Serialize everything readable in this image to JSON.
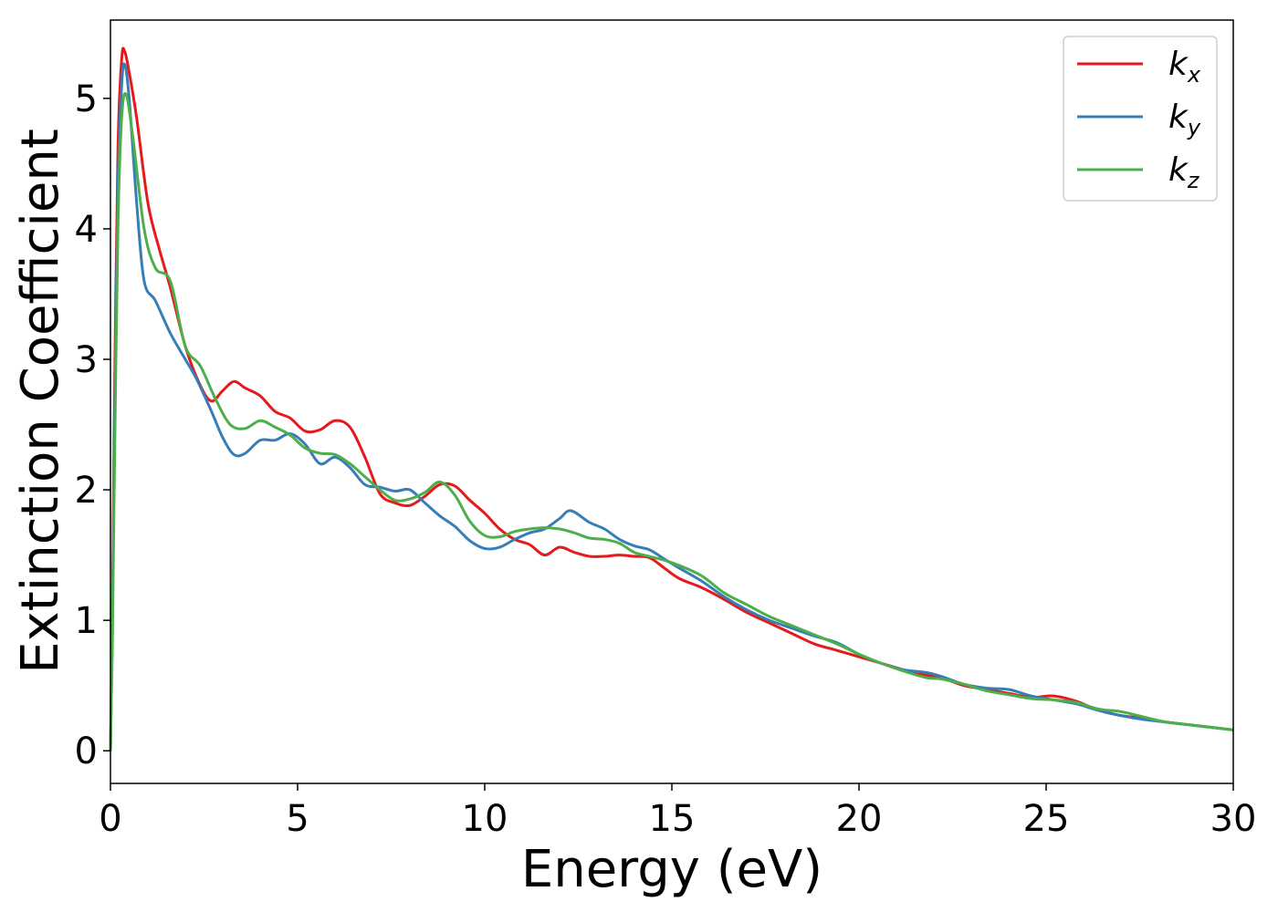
{
  "chart_data": {
    "type": "line",
    "title": "",
    "xlabel": "Energy (eV)",
    "ylabel": "Extinction Coefficient",
    "xlim": [
      0,
      30
    ],
    "ylim": [
      -0.25,
      5.6
    ],
    "xticks": [
      0,
      5,
      10,
      15,
      20,
      25,
      30
    ],
    "yticks": [
      0,
      1,
      2,
      3,
      4,
      5
    ],
    "grid": false,
    "legend_position": "top-right",
    "series": [
      {
        "name": "k",
        "sub": "x",
        "color": "#e41a1c",
        "points": [
          [
            0,
            0
          ],
          [
            0.05,
            1.0
          ],
          [
            0.1,
            2.5
          ],
          [
            0.2,
            4.6
          ],
          [
            0.3,
            5.3
          ],
          [
            0.38,
            5.36
          ],
          [
            0.5,
            5.2
          ],
          [
            0.7,
            4.85
          ],
          [
            1.0,
            4.2
          ],
          [
            1.3,
            3.85
          ],
          [
            1.6,
            3.55
          ],
          [
            2.0,
            3.1
          ],
          [
            2.4,
            2.8
          ],
          [
            2.7,
            2.68
          ],
          [
            3.0,
            2.76
          ],
          [
            3.3,
            2.83
          ],
          [
            3.6,
            2.78
          ],
          [
            4.0,
            2.72
          ],
          [
            4.4,
            2.6
          ],
          [
            4.8,
            2.55
          ],
          [
            5.2,
            2.45
          ],
          [
            5.6,
            2.46
          ],
          [
            6.0,
            2.53
          ],
          [
            6.4,
            2.48
          ],
          [
            6.8,
            2.25
          ],
          [
            7.2,
            1.97
          ],
          [
            7.6,
            1.9
          ],
          [
            8.0,
            1.88
          ],
          [
            8.4,
            1.95
          ],
          [
            8.8,
            2.04
          ],
          [
            9.2,
            2.03
          ],
          [
            9.6,
            1.92
          ],
          [
            10.0,
            1.82
          ],
          [
            10.4,
            1.7
          ],
          [
            10.8,
            1.62
          ],
          [
            11.2,
            1.58
          ],
          [
            11.6,
            1.5
          ],
          [
            12.0,
            1.56
          ],
          [
            12.4,
            1.52
          ],
          [
            12.8,
            1.49
          ],
          [
            13.2,
            1.49
          ],
          [
            13.6,
            1.5
          ],
          [
            14.0,
            1.49
          ],
          [
            14.4,
            1.48
          ],
          [
            14.8,
            1.4
          ],
          [
            15.2,
            1.32
          ],
          [
            15.8,
            1.25
          ],
          [
            16.4,
            1.16
          ],
          [
            17.0,
            1.06
          ],
          [
            17.6,
            0.98
          ],
          [
            18.2,
            0.9
          ],
          [
            18.8,
            0.82
          ],
          [
            19.4,
            0.77
          ],
          [
            20.0,
            0.72
          ],
          [
            20.6,
            0.67
          ],
          [
            21.2,
            0.62
          ],
          [
            21.8,
            0.58
          ],
          [
            22.2,
            0.56
          ],
          [
            22.8,
            0.5
          ],
          [
            23.4,
            0.47
          ],
          [
            24.0,
            0.44
          ],
          [
            24.6,
            0.41
          ],
          [
            25.2,
            0.42
          ],
          [
            25.8,
            0.38
          ],
          [
            26.4,
            0.31
          ],
          [
            27.0,
            0.27
          ],
          [
            27.6,
            0.25
          ],
          [
            28.2,
            0.22
          ],
          [
            28.8,
            0.2
          ],
          [
            29.4,
            0.18
          ],
          [
            30.0,
            0.16
          ]
        ]
      },
      {
        "name": "k",
        "sub": "y",
        "color": "#377eb8",
        "points": [
          [
            0,
            0
          ],
          [
            0.05,
            0.9
          ],
          [
            0.1,
            2.3
          ],
          [
            0.2,
            4.3
          ],
          [
            0.3,
            5.1
          ],
          [
            0.38,
            5.26
          ],
          [
            0.5,
            5.0
          ],
          [
            0.7,
            4.2
          ],
          [
            0.9,
            3.6
          ],
          [
            1.2,
            3.45
          ],
          [
            1.6,
            3.2
          ],
          [
            2.0,
            3.0
          ],
          [
            2.3,
            2.85
          ],
          [
            2.7,
            2.6
          ],
          [
            3.0,
            2.4
          ],
          [
            3.3,
            2.27
          ],
          [
            3.6,
            2.28
          ],
          [
            4.0,
            2.38
          ],
          [
            4.4,
            2.38
          ],
          [
            4.8,
            2.43
          ],
          [
            5.2,
            2.35
          ],
          [
            5.6,
            2.2
          ],
          [
            6.0,
            2.25
          ],
          [
            6.4,
            2.17
          ],
          [
            6.8,
            2.04
          ],
          [
            7.2,
            2.02
          ],
          [
            7.6,
            1.99
          ],
          [
            8.0,
            2.0
          ],
          [
            8.4,
            1.9
          ],
          [
            8.8,
            1.8
          ],
          [
            9.2,
            1.72
          ],
          [
            9.6,
            1.61
          ],
          [
            10.0,
            1.55
          ],
          [
            10.4,
            1.56
          ],
          [
            10.8,
            1.62
          ],
          [
            11.2,
            1.67
          ],
          [
            11.6,
            1.7
          ],
          [
            12.0,
            1.78
          ],
          [
            12.3,
            1.84
          ],
          [
            12.8,
            1.75
          ],
          [
            13.2,
            1.7
          ],
          [
            13.6,
            1.62
          ],
          [
            14.0,
            1.57
          ],
          [
            14.4,
            1.54
          ],
          [
            14.8,
            1.47
          ],
          [
            15.2,
            1.4
          ],
          [
            15.8,
            1.3
          ],
          [
            16.4,
            1.18
          ],
          [
            17.0,
            1.08
          ],
          [
            17.6,
            1.0
          ],
          [
            18.2,
            0.94
          ],
          [
            18.8,
            0.88
          ],
          [
            19.4,
            0.83
          ],
          [
            20.0,
            0.74
          ],
          [
            20.6,
            0.67
          ],
          [
            21.2,
            0.62
          ],
          [
            21.8,
            0.6
          ],
          [
            22.2,
            0.57
          ],
          [
            22.8,
            0.51
          ],
          [
            23.4,
            0.48
          ],
          [
            24.0,
            0.47
          ],
          [
            24.6,
            0.42
          ],
          [
            25.2,
            0.39
          ],
          [
            25.8,
            0.36
          ],
          [
            26.4,
            0.31
          ],
          [
            27.0,
            0.27
          ],
          [
            27.6,
            0.24
          ],
          [
            28.2,
            0.22
          ],
          [
            28.8,
            0.2
          ],
          [
            29.4,
            0.18
          ],
          [
            30.0,
            0.16
          ]
        ]
      },
      {
        "name": "k",
        "sub": "z",
        "color": "#4daf4a",
        "points": [
          [
            0,
            0
          ],
          [
            0.05,
            0.8
          ],
          [
            0.1,
            2.0
          ],
          [
            0.2,
            4.0
          ],
          [
            0.3,
            4.85
          ],
          [
            0.42,
            5.03
          ],
          [
            0.6,
            4.7
          ],
          [
            0.9,
            4.0
          ],
          [
            1.2,
            3.7
          ],
          [
            1.6,
            3.6
          ],
          [
            2.0,
            3.1
          ],
          [
            2.4,
            2.95
          ],
          [
            2.8,
            2.7
          ],
          [
            3.2,
            2.5
          ],
          [
            3.6,
            2.47
          ],
          [
            4.0,
            2.53
          ],
          [
            4.4,
            2.48
          ],
          [
            4.8,
            2.42
          ],
          [
            5.2,
            2.32
          ],
          [
            5.6,
            2.28
          ],
          [
            6.0,
            2.27
          ],
          [
            6.4,
            2.2
          ],
          [
            6.8,
            2.1
          ],
          [
            7.2,
            2.0
          ],
          [
            7.6,
            1.92
          ],
          [
            8.0,
            1.93
          ],
          [
            8.4,
            1.98
          ],
          [
            8.8,
            2.06
          ],
          [
            9.2,
            1.96
          ],
          [
            9.6,
            1.76
          ],
          [
            10.0,
            1.65
          ],
          [
            10.4,
            1.64
          ],
          [
            10.8,
            1.68
          ],
          [
            11.2,
            1.7
          ],
          [
            11.6,
            1.71
          ],
          [
            12.0,
            1.7
          ],
          [
            12.4,
            1.67
          ],
          [
            12.8,
            1.63
          ],
          [
            13.2,
            1.62
          ],
          [
            13.6,
            1.59
          ],
          [
            14.0,
            1.52
          ],
          [
            14.4,
            1.49
          ],
          [
            14.8,
            1.46
          ],
          [
            15.2,
            1.42
          ],
          [
            15.8,
            1.34
          ],
          [
            16.4,
            1.21
          ],
          [
            17.0,
            1.12
          ],
          [
            17.6,
            1.03
          ],
          [
            18.2,
            0.96
          ],
          [
            18.8,
            0.89
          ],
          [
            19.4,
            0.82
          ],
          [
            20.0,
            0.74
          ],
          [
            20.6,
            0.67
          ],
          [
            21.2,
            0.61
          ],
          [
            21.8,
            0.56
          ],
          [
            22.2,
            0.55
          ],
          [
            22.8,
            0.51
          ],
          [
            23.4,
            0.46
          ],
          [
            24.0,
            0.43
          ],
          [
            24.6,
            0.4
          ],
          [
            25.2,
            0.39
          ],
          [
            25.8,
            0.37
          ],
          [
            26.4,
            0.32
          ],
          [
            27.0,
            0.3
          ],
          [
            27.6,
            0.26
          ],
          [
            28.2,
            0.22
          ],
          [
            28.8,
            0.2
          ],
          [
            29.4,
            0.18
          ],
          [
            30.0,
            0.16
          ]
        ]
      }
    ]
  }
}
